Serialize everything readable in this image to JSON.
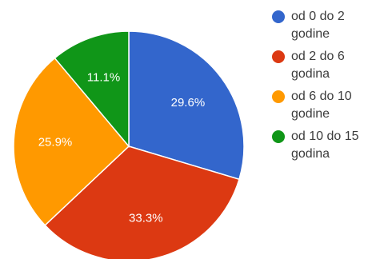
{
  "chart_data": {
    "type": "pie",
    "slices": [
      {
        "label": "od 0 do 2\ngodine",
        "value": 29.6,
        "value_label": "29.6%",
        "color": "#3366cc"
      },
      {
        "label": "od 2 do 6\ngodina",
        "value": 33.3,
        "value_label": "33.3%",
        "color": "#dc3912"
      },
      {
        "label": "od 6 do 10\ngodine",
        "value": 25.9,
        "value_label": "25.9%",
        "color": "#ff9900"
      },
      {
        "label": "od 10 do 15\ngodina",
        "value": 11.1,
        "value_label": "11.1%",
        "color": "#109618"
      }
    ],
    "legend_position": "right",
    "start_angle_deg": 90,
    "direction": "clockwise"
  }
}
